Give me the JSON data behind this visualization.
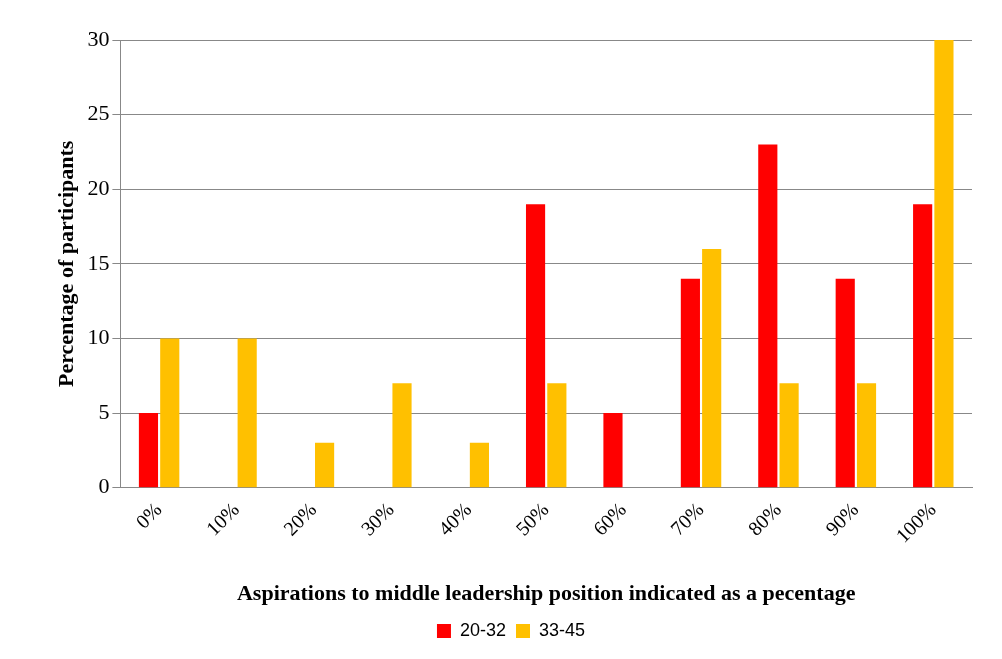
{
  "chart_data": {
    "type": "bar",
    "xlabel": "Aspirations to middle leadership position indicated as a pecentage",
    "ylabel": "Percentage of participants",
    "categories": [
      "0%",
      "10%",
      "20%",
      "30%",
      "40%",
      "50%",
      "60%",
      "70%",
      "80%",
      "90%",
      "100%"
    ],
    "series": [
      {
        "name": "20-32",
        "color": "#ff0000",
        "values": [
          5,
          0,
          0,
          0,
          0,
          19,
          5,
          14,
          23,
          14,
          19
        ]
      },
      {
        "name": "33-45",
        "color": "#ffc000",
        "values": [
          10,
          10,
          3,
          7,
          3,
          7,
          0,
          16,
          7,
          7,
          30
        ]
      }
    ],
    "ylim": [
      0,
      30
    ],
    "yticks": [
      0,
      5,
      10,
      15,
      20,
      25,
      30
    ],
    "grid": "y",
    "legend": "bottom"
  }
}
